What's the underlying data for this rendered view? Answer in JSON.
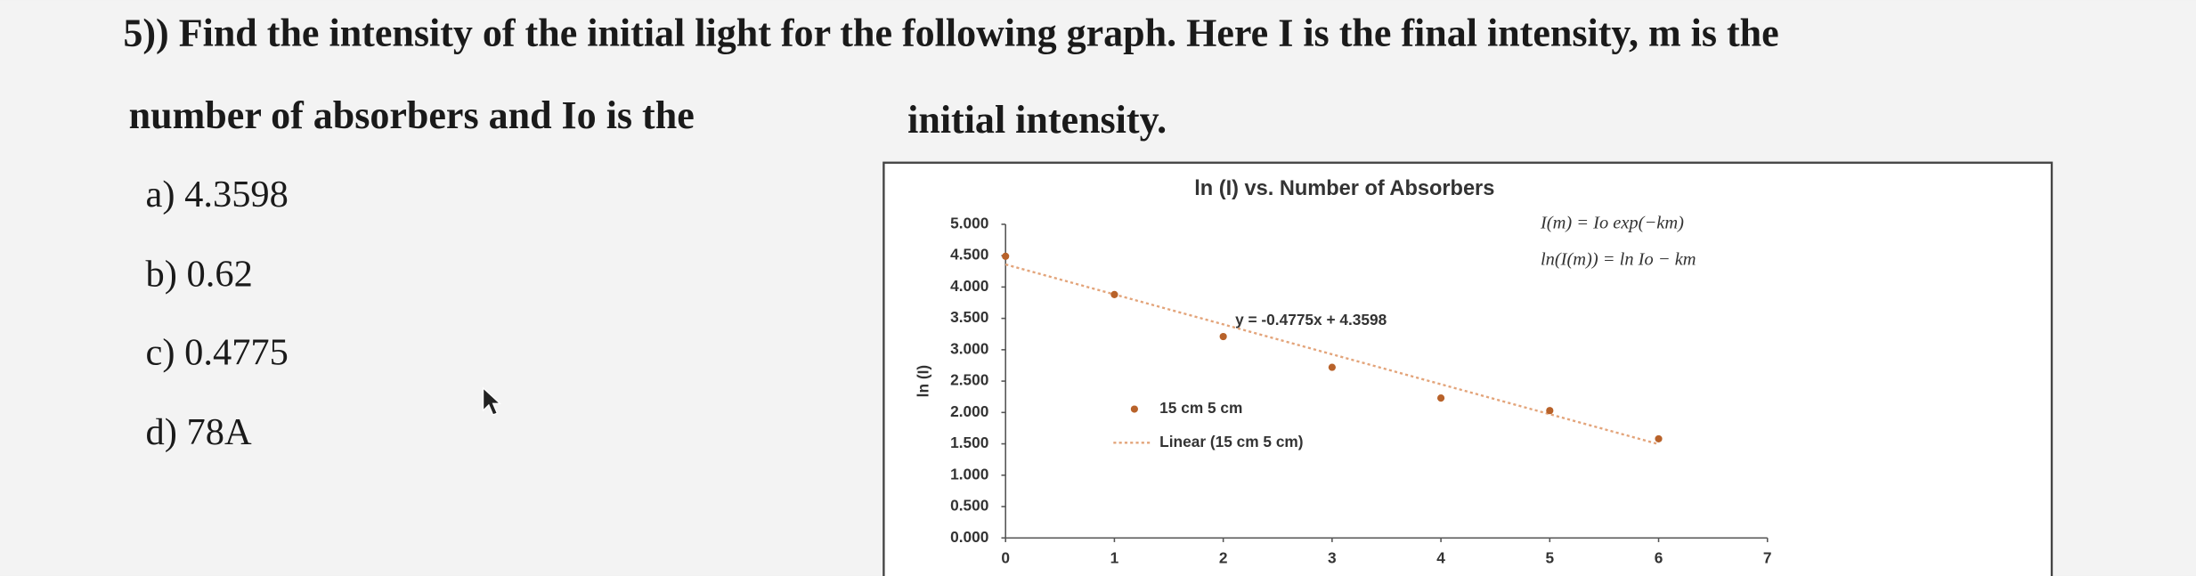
{
  "question": {
    "line1": "5)) Find the intensity of the initial light for the following  graph. Here I is the final intensity, m is the",
    "line2a": "number of absorbers and Io is the",
    "line2b": "initial intensity.",
    "options": [
      "a) 4.3598",
      "b) 0.62",
      "c) 0.4775",
      "d) 78A"
    ]
  },
  "chart_data": {
    "type": "scatter",
    "title": "ln (I) vs. Number of Absorbers",
    "y_label": "ln (I)",
    "equations": [
      "I(m) = Io exp(−km)",
      "ln(I(m)) = ln Io − km"
    ],
    "x": [
      0,
      1,
      2,
      3,
      4,
      5,
      6
    ],
    "series": [
      {
        "name": "15 cm 5 cm",
        "color": "#b8622a",
        "values": [
          4.49,
          3.88,
          3.21,
          2.72,
          2.23,
          2.03,
          1.58
        ]
      }
    ],
    "trendline": {
      "name": "Linear (15 cm 5 cm)",
      "label": "y = -0.4775x + 4.3598",
      "slope": -0.4775,
      "intercept": 4.3598,
      "color": "#e3a47a"
    },
    "xlim": [
      0,
      7
    ],
    "xticks": [
      0,
      1,
      2,
      3,
      4,
      5,
      6,
      7
    ],
    "ylim": [
      0,
      5
    ],
    "yticks": [
      {
        "value": 0,
        "label": "0.000"
      },
      {
        "value": 0.5,
        "label": "0.500"
      },
      {
        "value": 1,
        "label": "1.000"
      },
      {
        "value": 1.5,
        "label": "1.500"
      },
      {
        "value": 2,
        "label": "2.000"
      },
      {
        "value": 2.5,
        "label": "2.500"
      },
      {
        "value": 3,
        "label": "3.000"
      },
      {
        "value": 3.5,
        "label": "3.500"
      },
      {
        "value": 4,
        "label": "4.000"
      },
      {
        "value": 4.5,
        "label": "4.500"
      },
      {
        "value": 5,
        "label": "5.000"
      }
    ],
    "grid": false
  }
}
